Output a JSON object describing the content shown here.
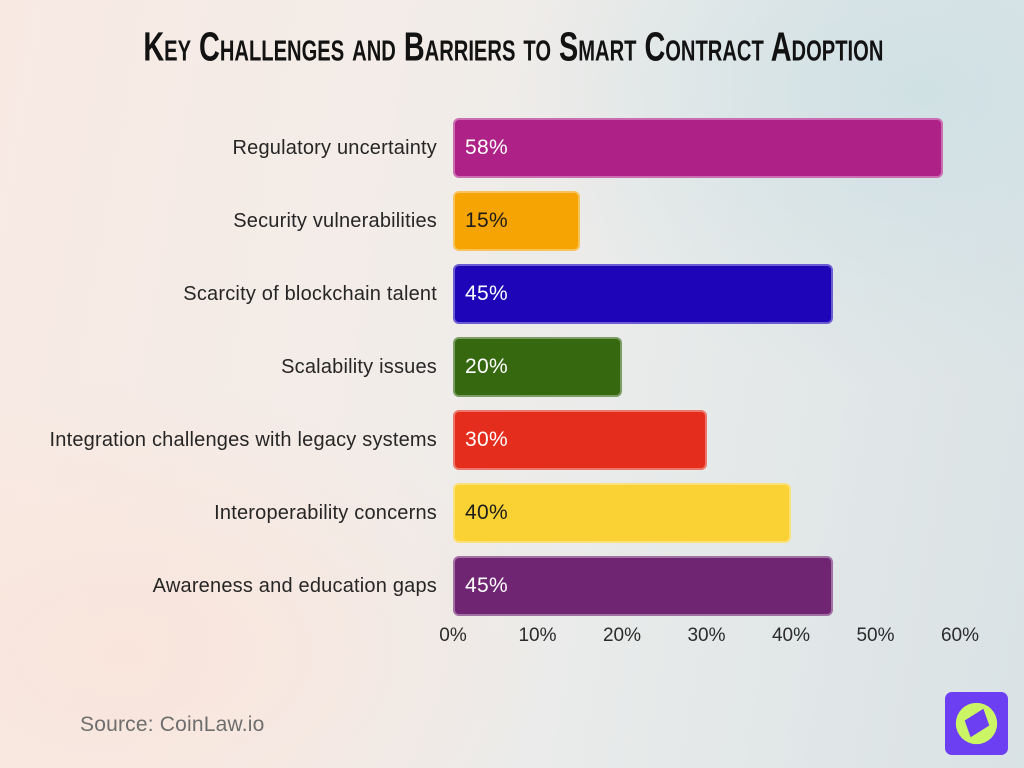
{
  "title": "Key Challenges and Barriers to Smart Contract Adoption",
  "source_label": "Source: CoinLaw.io",
  "chart_data": {
    "type": "bar",
    "orientation": "horizontal",
    "title": "Key Challenges and Barriers to Smart Contract Adoption",
    "categories": [
      "Regulatory uncertainty",
      "Security vulnerabilities",
      "Scarcity of blockchain talent",
      "Scalability issues",
      "Integration challenges with legacy systems",
      "Interoperability concerns",
      "Awareness and education gaps"
    ],
    "values": [
      58,
      15,
      45,
      20,
      30,
      40,
      45
    ],
    "value_labels": [
      "58%",
      "15%",
      "45%",
      "20%",
      "30%",
      "40%",
      "45%"
    ],
    "bar_colors": [
      "#ae2187",
      "#f6a404",
      "#1e06b8",
      "#35680f",
      "#e42d1d",
      "#fad233",
      "#702573"
    ],
    "value_text_colors": [
      "#ffffff",
      "#1d1d1d",
      "#ffffff",
      "#ffffff",
      "#ffffff",
      "#1d1d1d",
      "#ffffff"
    ],
    "xlabel": "",
    "ylabel": "",
    "xlim": [
      0,
      60
    ],
    "x_ticks": [
      "0%",
      "10%",
      "20%",
      "30%",
      "40%",
      "50%",
      "60%"
    ],
    "grid": false,
    "legend": false
  },
  "logo": {
    "name": "coinlaw-compass-logo",
    "square_color": "#6c40f2",
    "circle_color": "#ccf566",
    "needle_color": "#6c40f2"
  },
  "colors": {
    "background_left": "#f8eae3",
    "background_right": "#d7e1e4",
    "title_text": "#121212",
    "label_text": "#262626",
    "tick_text": "#2b2b2b",
    "source_text": "#6e6e6e"
  }
}
